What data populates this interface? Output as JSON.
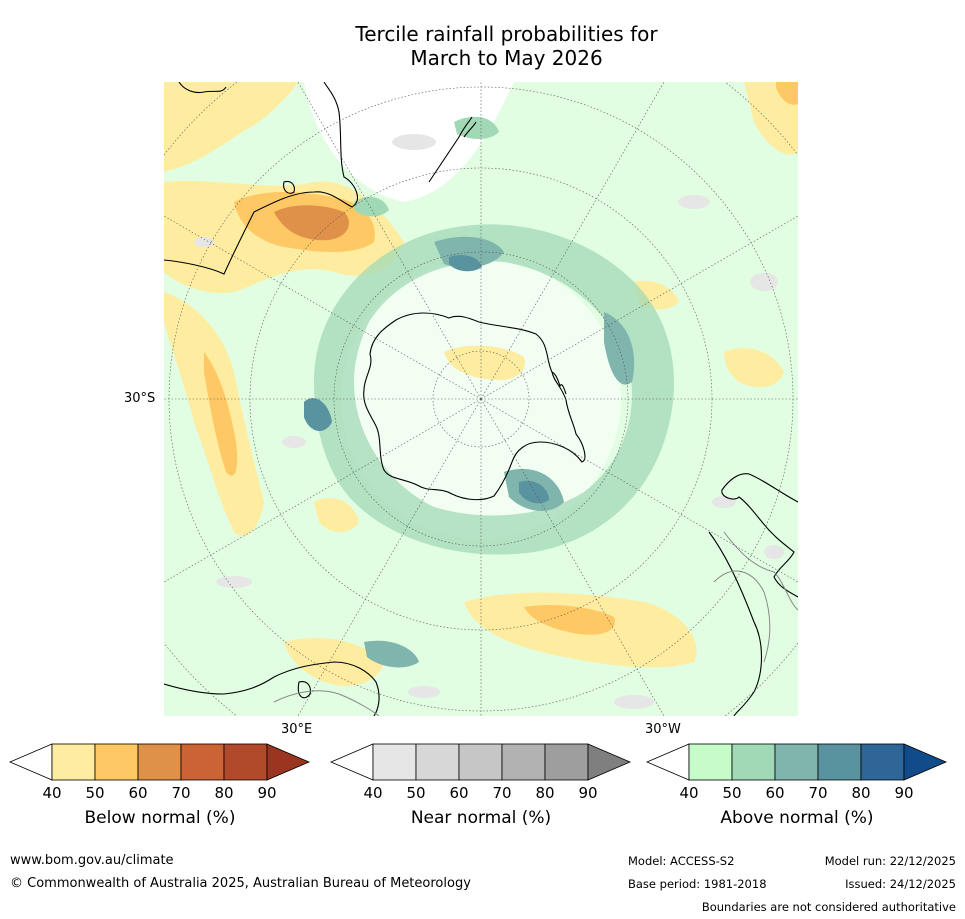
{
  "title": {
    "line1": "Tercile rainfall probabilities for",
    "line2": "March to May 2026"
  },
  "map": {
    "projection": "south-polar-stereographic",
    "labels": {
      "lat_30s": "30°S",
      "lon_30e": "30°E",
      "lon_30w": "30°W"
    },
    "colors": {
      "coastline": "#000000",
      "graticule": "#555555",
      "boundary": "#888888"
    }
  },
  "colorbars": [
    {
      "title": "Below normal (%)",
      "ticks": [
        "40",
        "50",
        "60",
        "70",
        "80",
        "90"
      ],
      "under": "#ffffff",
      "bins": [
        "#feeda0",
        "#fec965",
        "#e09149",
        "#cc6335",
        "#b04a2b"
      ],
      "over": "#9b3521"
    },
    {
      "title": "Near normal (%)",
      "ticks": [
        "40",
        "50",
        "60",
        "70",
        "80",
        "90"
      ],
      "under": "#ffffff",
      "bins": [
        "#e6e6e6",
        "#d7d7d7",
        "#c6c6c6",
        "#b2b2b2",
        "#9e9e9e"
      ],
      "over": "#7f7f7f"
    },
    {
      "title": "Above normal (%)",
      "ticks": [
        "40",
        "50",
        "60",
        "70",
        "80",
        "90"
      ],
      "under": "#ffffff",
      "bins": [
        "#c6fcc9",
        "#a1d8b6",
        "#7fb5ad",
        "#5a93a0",
        "#2f6698"
      ],
      "over": "#124b8a"
    }
  ],
  "footer": {
    "website": "www.bom.gov.au/climate",
    "copyright": "© Commonwealth of Australia 2025, Australian Bureau of Meteorology",
    "model": "Model: ACCESS-S2",
    "model_run": "Model run: 22/12/2025",
    "base_period": "Base period: 1981-2018",
    "issued": "Issued: 24/12/2025",
    "disclaimer": "Boundaries are not considered authoritative"
  }
}
